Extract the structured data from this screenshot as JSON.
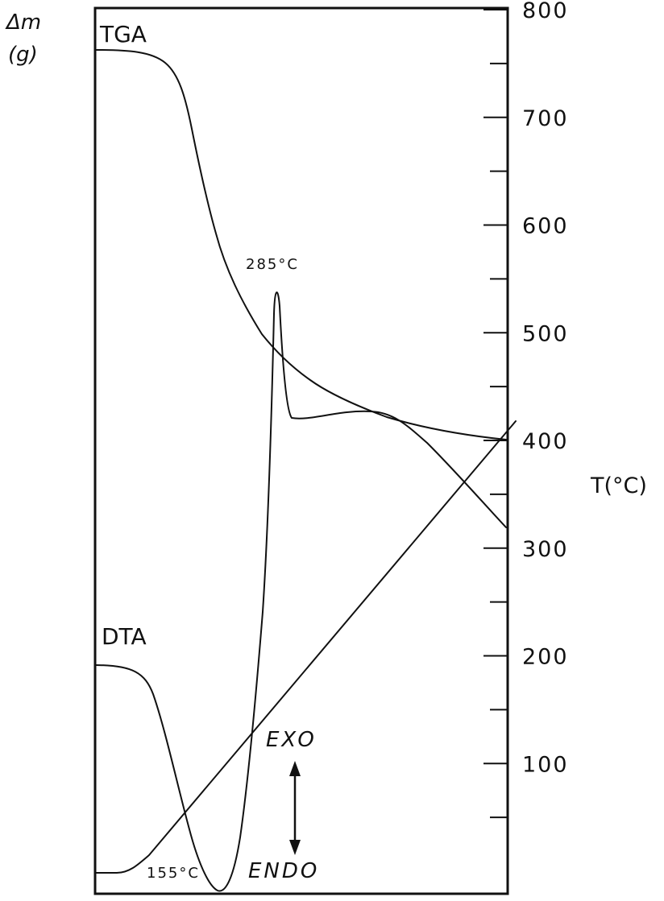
{
  "chart_data": {
    "type": "line",
    "title": "",
    "y_left_label_line1": "Δm",
    "y_left_label_line2": "(g)",
    "y_right_label": "T(°C)",
    "y_right_ticks": [
      "100",
      "200",
      "300",
      "400",
      "500",
      "600",
      "700",
      "800"
    ],
    "y_right_tick_values": [
      100,
      200,
      300,
      400,
      500,
      600,
      700,
      800
    ],
    "series": [
      {
        "name": "TGA"
      },
      {
        "name": "DTA"
      }
    ],
    "annotations": {
      "peak_exo": "285°C",
      "peak_endo": "155°C",
      "exo": "EXO",
      "endo": "ENDO"
    }
  }
}
